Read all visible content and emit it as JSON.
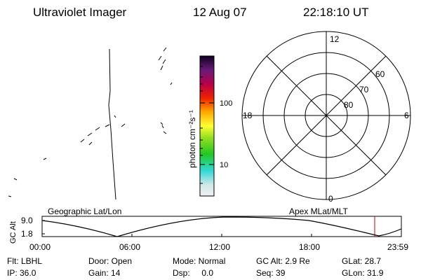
{
  "header": {
    "title": "Ultraviolet Imager",
    "date": "12 Aug 07",
    "time": "22:18:10 UT"
  },
  "colorbar": {
    "unit_label": "photon cm⁻²s⁻¹",
    "ticks": [
      "100",
      "10"
    ]
  },
  "polar_plot": {
    "mlt_labels": {
      "top": "12",
      "right": "6",
      "bottom": "0",
      "left": "18"
    },
    "lat_labels": [
      "60",
      "70",
      "80"
    ]
  },
  "labels": {
    "left_panel": "Geographic Lat/Lon",
    "right_panel": "Apex MLat/MLT"
  },
  "altitude_plot": {
    "ylabel": "GC Alt",
    "yticks": [
      "9.0",
      "1.8"
    ],
    "xticks": [
      "00:00",
      "06:00",
      "12:00",
      "18:00",
      "23:59"
    ],
    "marker_time": "22:18"
  },
  "status": {
    "row1": {
      "flt": "Flt: LBHL",
      "door": "Door: Open",
      "mode": "Mode: Normal",
      "gc_alt": "GC Alt: 2.9 Re",
      "glat": "GLat: 28.7"
    },
    "row2": {
      "ip": "IP: 36.0",
      "gain": "Gain: 14",
      "dsp": "Dsp:     0.0",
      "seq": "Seq: 39",
      "glon": "GLon: 31.9"
    }
  },
  "colors": {
    "marker": "#cc0000"
  }
}
